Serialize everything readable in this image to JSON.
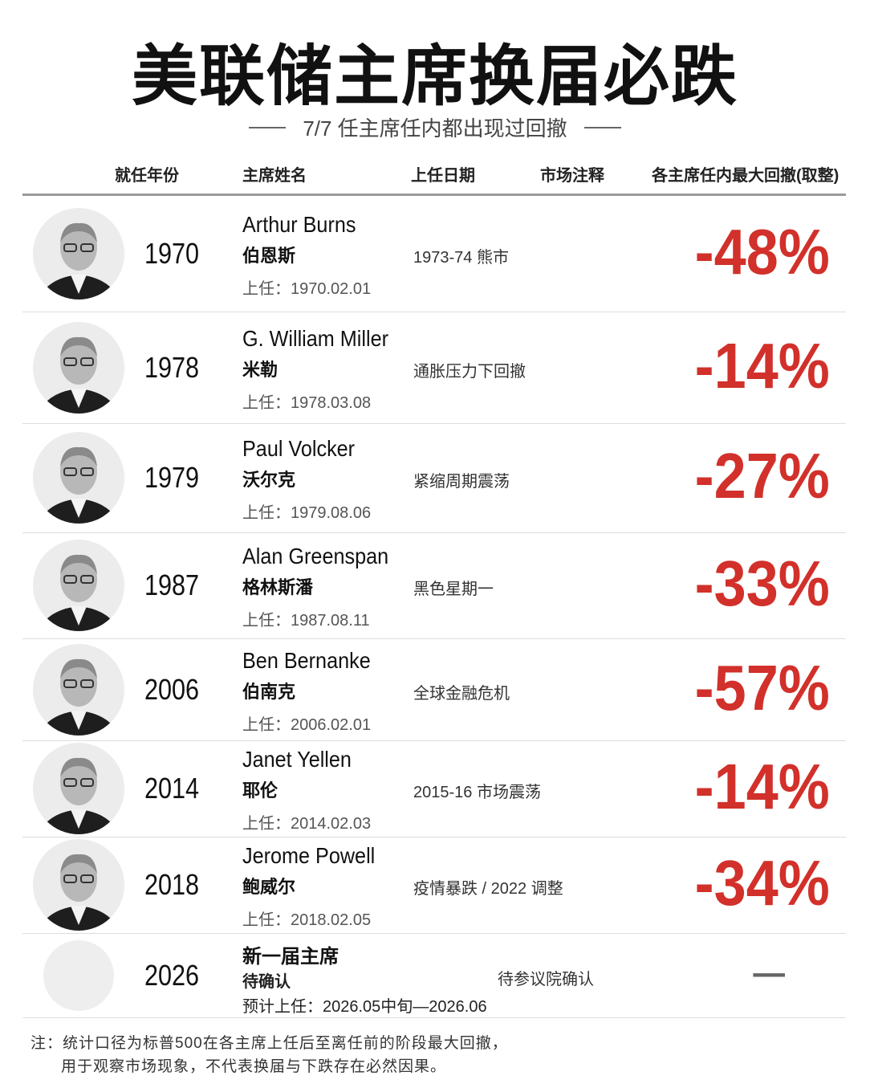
{
  "header": {
    "title": "美联储主席换届必跌",
    "subtitle": "7/7 任主席任内都出现过回撤"
  },
  "table": {
    "columns": [
      "就任年份",
      "主席姓名",
      "上任日期",
      "市场注释",
      "各主席任内最大回撤(取整)"
    ],
    "rows": [
      {
        "year": "1970",
        "name_en": "Arthur Burns",
        "name_cn": "伯恩斯",
        "start": "上任：1970.02.01",
        "note": "1973-74 熊市",
        "drawdown": "-48%"
      },
      {
        "year": "1978",
        "name_en": "G. William Miller",
        "name_cn": "米勒",
        "start": "上任：1978.03.08",
        "note": "通胀压力下回撤",
        "drawdown": "-14%"
      },
      {
        "year": "1979",
        "name_en": "Paul Volcker",
        "name_cn": "沃尔克",
        "start": "上任：1979.08.06",
        "note": "紧缩周期震荡",
        "drawdown": "-27%"
      },
      {
        "year": "1987",
        "name_en": "Alan Greenspan",
        "name_cn": "格林斯潘",
        "start": "上任：1987.08.11",
        "note": "黑色星期一",
        "drawdown": "-33%"
      },
      {
        "year": "2006",
        "name_en": "Ben Bernanke",
        "name_cn": "伯南克",
        "start": "上任：2006.02.01",
        "note": "全球金融危机",
        "drawdown": "-57%"
      },
      {
        "year": "2014",
        "name_en": "Janet Yellen",
        "name_cn": "耶伦",
        "start": "上任：2014.02.03",
        "note": "2015-16 市场震荡",
        "drawdown": "-14%"
      },
      {
        "year": "2018",
        "name_en": "Jerome Powell",
        "name_cn": "鲍威尔",
        "start": "上任：2018.02.05",
        "note": "疫情暴跌 / 2022 调整",
        "drawdown": "-34%"
      },
      {
        "year": "2026",
        "name_en": "新一届主席",
        "name_cn": "待确认",
        "start": "预计上任：2026.05中旬—2026.06",
        "note": "待参议院确认",
        "drawdown": "—"
      }
    ]
  },
  "footer": {
    "notes": [
      "注：统计口径为标普500在各主席上任后至离任前的阶段最大回撤，",
      "用于观察市场现象，不代表换届与下跌存在必然因果。"
    ]
  }
}
